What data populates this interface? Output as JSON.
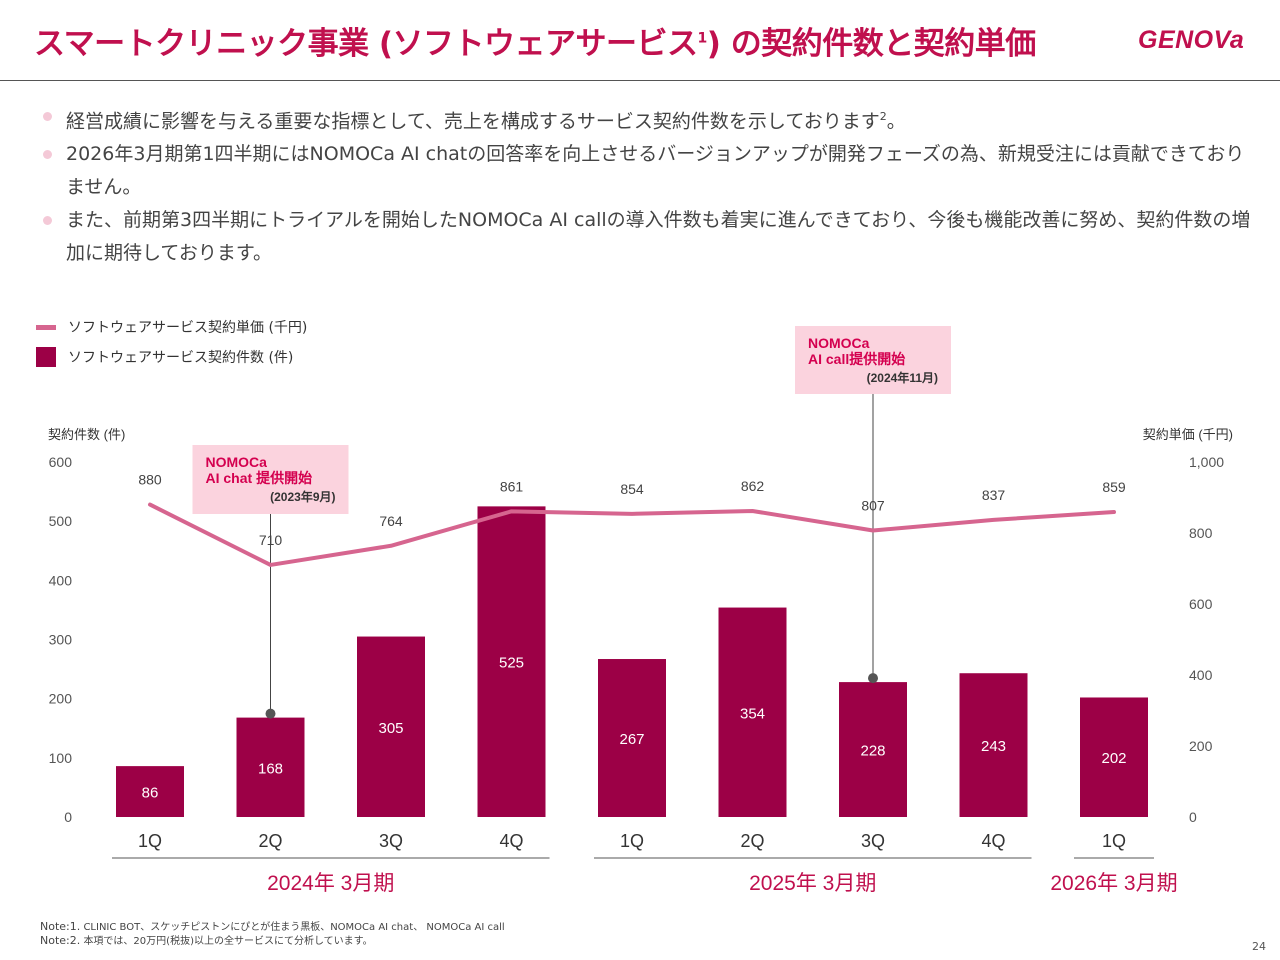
{
  "header": {
    "title_main": "スマートクリニック事業 (ソフトウェアサービス",
    "title_sup": "1",
    "title_end": ") の契約件数と契約単価",
    "logo": "GENOVa"
  },
  "bullets": [
    {
      "text": "経営成績に影響を与える重要な指標として、売上を構成するサービス契約件数を示しております",
      "sup": "2",
      "tail": "。"
    },
    {
      "text": "2026年3月期第1四半期にはNOMOCa AI chatの回答率を向上させるバージョンアップが開発フェーズの為、新規受注には貢献できておりません。",
      "sup": "",
      "tail": ""
    },
    {
      "text": "また、前期第3四半期にトライアルを開始したNOMOCa AI callの導入件数も着実に進んできており、今後も機能改善に努め、契約件数の増加に期待しております。",
      "sup": "",
      "tail": ""
    }
  ],
  "legend": {
    "line_label": "ソフトウェアサービス契約単価 (千円)",
    "bar_label": "ソフトウェアサービス契約件数 (件)"
  },
  "chart_data": {
    "type": "bar",
    "categories": [
      "1Q",
      "2Q",
      "3Q",
      "4Q",
      "1Q",
      "2Q",
      "3Q",
      "4Q",
      "1Q"
    ],
    "series": [
      {
        "name": "ソフトウェアサービス契約件数 (件)",
        "type": "bar",
        "axis": "left",
        "values": [
          86,
          168,
          305,
          525,
          267,
          354,
          228,
          243,
          202
        ]
      },
      {
        "name": "ソフトウェアサービス契約単価 (千円)",
        "type": "line",
        "axis": "right",
        "values": [
          880,
          710,
          764,
          861,
          854,
          862,
          807,
          837,
          859
        ]
      }
    ],
    "ylabel": "契約件数 (件)",
    "y2label": "契約単価 (千円)",
    "ylim": [
      0,
      600
    ],
    "y2lim": [
      0,
      1000
    ],
    "yticks": [
      "0",
      "100",
      "200",
      "300",
      "400",
      "500",
      "600"
    ],
    "y2ticks": [
      "0",
      "200",
      "400",
      "600",
      "800",
      "1,000"
    ],
    "groups": [
      {
        "label": "2024年 3月期",
        "start": 0,
        "end": 3
      },
      {
        "label": "2025年 3月期",
        "start": 4,
        "end": 7
      },
      {
        "label": "2026年 3月期",
        "start": 8,
        "end": 8
      }
    ],
    "annotations": [
      {
        "index": 1,
        "line1": "NOMOCa",
        "line2": "AI chat 提供開始",
        "date": "(2023年9月)"
      },
      {
        "index": 6,
        "line1": "NOMOCa",
        "line2": "AI call提供開始",
        "date": "(2024年11月)"
      }
    ],
    "colors": {
      "bar": "#9c0046",
      "line": "#d6658f",
      "callout_bg": "#fbd3de",
      "callout_text": "#d4004f",
      "group_label": "#c0104e"
    }
  },
  "notes": [
    {
      "prefix": "Note:1.",
      "text": "CLINIC BOT、スケッチピストンにぴとが住まう黒板、NOMOCa AI chat、 NOMOCa AI call"
    },
    {
      "prefix": "Note:2.",
      "text": "本項では、20万円(税抜)以上の全サービスにて分析しています。"
    }
  ],
  "page_number": "24"
}
